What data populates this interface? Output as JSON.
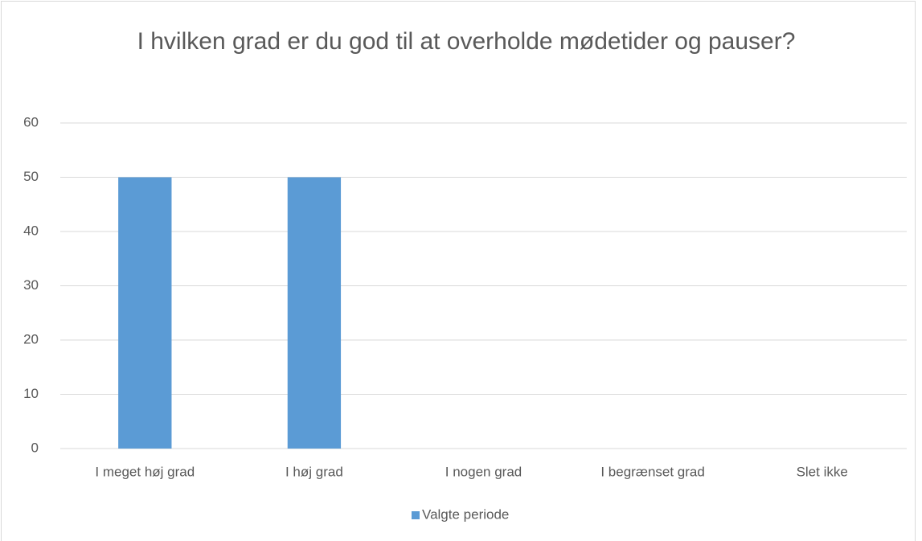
{
  "chart_data": {
    "type": "bar",
    "title": "I hvilken grad er du god til at overholde mødetider og pauser?",
    "categories": [
      "I meget høj grad",
      "I høj grad",
      "I nogen grad",
      "I begrænset grad",
      "Slet ikke"
    ],
    "series": [
      {
        "name": "Valgte periode",
        "color": "#5b9bd5",
        "values": [
          50,
          50,
          0,
          0,
          0
        ]
      }
    ],
    "ylim": [
      0,
      60
    ],
    "yticks": [
      0,
      10,
      20,
      30,
      40,
      50,
      60
    ],
    "grid": true,
    "legend": "bottom"
  }
}
